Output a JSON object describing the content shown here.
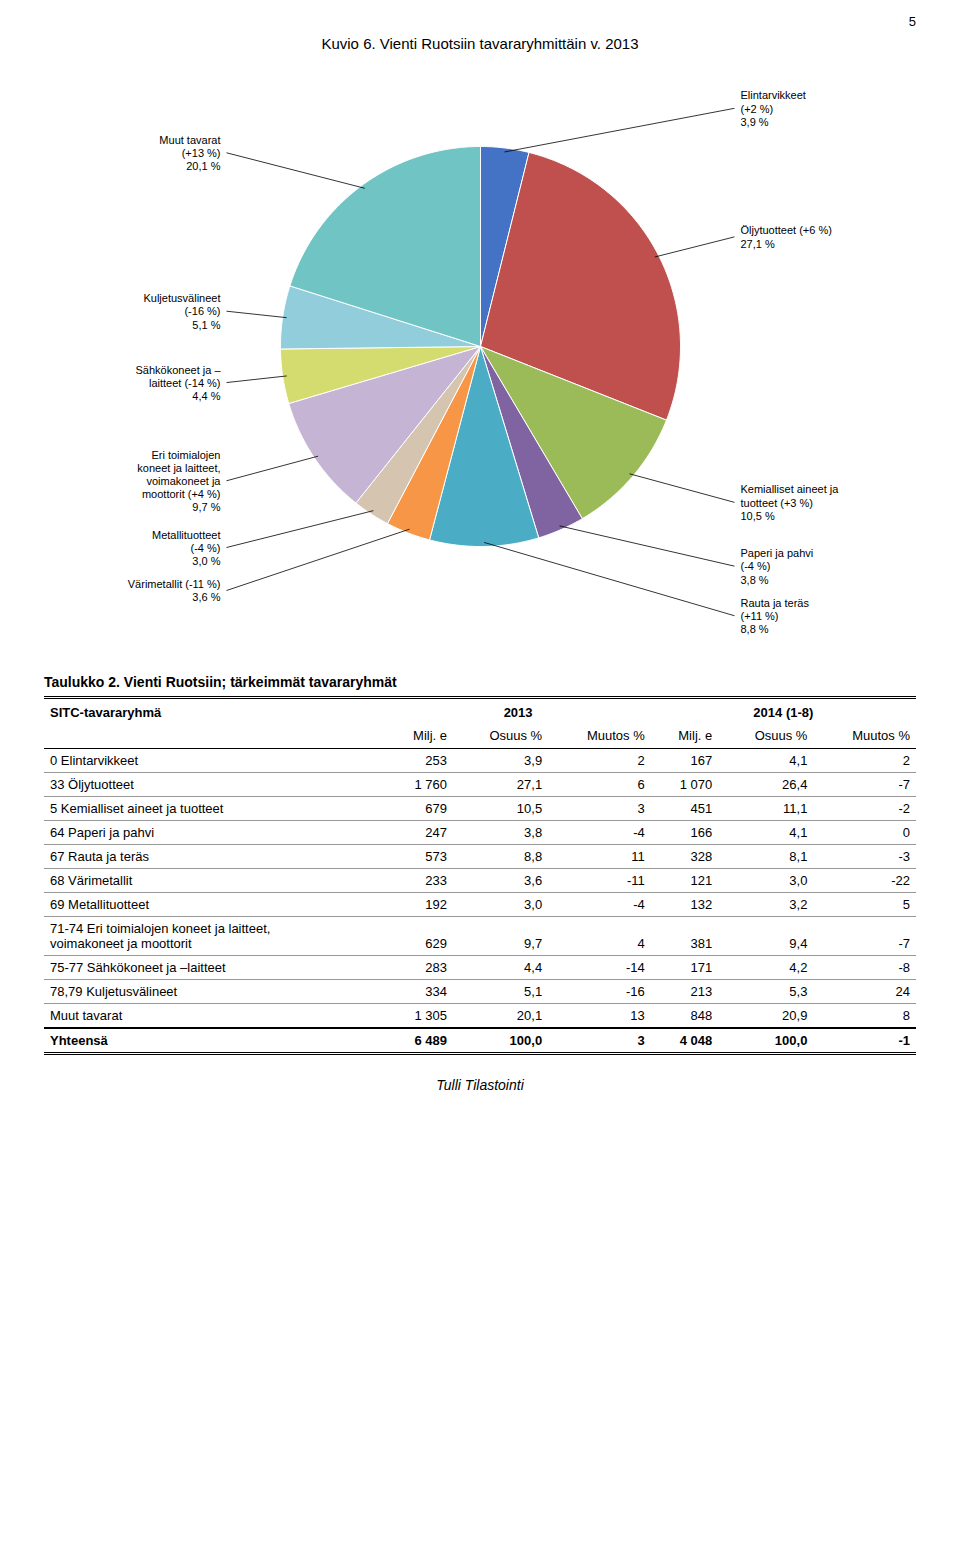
{
  "chart_data": {
    "type": "pie",
    "title": "Kuvio 6. Vienti Ruotsiin tavararyhmittäin v. 2013",
    "categories": [
      "Elintarvikkeet\n(+2 %)\n3,9 %",
      "Öljytuotteet (+6 %)\n27,1 %",
      "Kemialliset aineet ja\ntuotteet (+3 %)\n10,5 %",
      "Paperi ja pahvi\n(-4 %)\n3,8 %",
      "Rauta ja teräs\n(+11 %)\n8,8 %",
      "Värimetallit (-11 %)\n3,6 %",
      "Metallituotteet\n(-4 %)\n3,0 %",
      "Eri toimialojen\nkoneet ja laitteet,\nvoimakoneet ja\nmoottorit (+4 %)\n9,7 %",
      "Sähkökoneet ja –\nlaitteet (-14 %)\n4,4 %",
      "Kuljetusvälineet\n(-16 %)\n5,1 %",
      "Muut tavarat\n(+13 %)\n20,1 %"
    ],
    "values": [
      3.9,
      27.1,
      10.5,
      3.8,
      8.8,
      3.6,
      3.0,
      9.7,
      4.4,
      5.1,
      20.1
    ],
    "colors": [
      "#4472c4",
      "#c0504d",
      "#9bbb59",
      "#8064a2",
      "#4bacc6",
      "#f79646",
      "#d4c4b0",
      "#c6b4d4",
      "#d4dc70",
      "#92cddc",
      "#71c4c4"
    ]
  },
  "table": {
    "title": "Taulukko 2. Vienti Ruotsiin; tärkeimmät tavararyhmät",
    "stub": "SITC-tavararyhmä",
    "groups": [
      {
        "label": "2013",
        "columns": [
          "Milj. e",
          "Osuus %",
          "Muutos %"
        ]
      },
      {
        "label": "2014 (1-8)",
        "columns": [
          "Milj. e",
          "Osuus %",
          "Muutos %"
        ]
      }
    ],
    "rows": [
      {
        "label": [
          "0 Elintarvikkeet"
        ],
        "cells": [
          "253",
          "3,9",
          "2",
          "167",
          "4,1",
          "2"
        ]
      },
      {
        "label": [
          "33 Öljytuotteet"
        ],
        "cells": [
          "1 760",
          "27,1",
          "6",
          "1 070",
          "26,4",
          "-7"
        ]
      },
      {
        "label": [
          "5 Kemialliset aineet ja tuotteet"
        ],
        "cells": [
          "679",
          "10,5",
          "3",
          "451",
          "11,1",
          "-2"
        ]
      },
      {
        "label": [
          "64 Paperi ja pahvi"
        ],
        "cells": [
          "247",
          "3,8",
          "-4",
          "166",
          "4,1",
          "0"
        ]
      },
      {
        "label": [
          "67 Rauta ja teräs"
        ],
        "cells": [
          "573",
          "8,8",
          "11",
          "328",
          "8,1",
          "-3"
        ]
      },
      {
        "label": [
          "68 Värimetallit"
        ],
        "cells": [
          "233",
          "3,6",
          "-11",
          "121",
          "3,0",
          "-22"
        ]
      },
      {
        "label": [
          "69 Metallituotteet"
        ],
        "cells": [
          "192",
          "3,0",
          "-4",
          "132",
          "3,2",
          "5"
        ]
      },
      {
        "label": [
          "71-74 Eri toimialojen koneet ja laitteet,",
          "voimakoneet ja moottorit"
        ],
        "cells": [
          "629",
          "9,7",
          "4",
          "381",
          "9,4",
          "-7"
        ]
      },
      {
        "label": [
          "75-77 Sähkökoneet ja –laitteet"
        ],
        "cells": [
          "283",
          "4,4",
          "-14",
          "171",
          "4,2",
          "-8"
        ]
      },
      {
        "label": [
          "78,79 Kuljetusvälineet"
        ],
        "cells": [
          "334",
          "5,1",
          "-16",
          "213",
          "5,3",
          "24"
        ]
      },
      {
        "label": [
          "Muut tavarat"
        ],
        "cells": [
          "1 305",
          "20,1",
          "13",
          "848",
          "20,9",
          "8"
        ]
      },
      {
        "label": [
          "Yhteensä"
        ],
        "cells": [
          "6 489",
          "100,0",
          "3",
          "4 048",
          "100,0",
          "-1"
        ]
      }
    ]
  },
  "page_number": "5",
  "footer": "Tulli Tilastointi"
}
